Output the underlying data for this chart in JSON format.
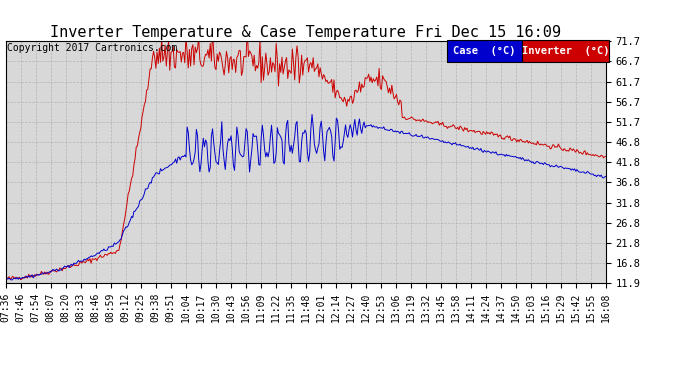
{
  "title": "Inverter Temperature & Case Temperature Fri Dec 15 16:09",
  "copyright": "Copyright 2017 Cartronics.com",
  "legend_case_label": "Case  (°C)",
  "legend_inverter_label": "Inverter  (°C)",
  "case_color": "#0000cc",
  "inverter_color": "#cc0000",
  "legend_case_bg": "#0000cc",
  "legend_inverter_bg": "#cc0000",
  "bg_color": "#ffffff",
  "plot_bg_color": "#d8d8d8",
  "grid_color": "#aaaaaa",
  "yticks": [
    11.9,
    16.8,
    21.8,
    26.8,
    31.8,
    36.8,
    41.8,
    46.8,
    51.7,
    56.7,
    61.7,
    66.7,
    71.7
  ],
  "ymin": 11.9,
  "ymax": 71.7,
  "title_fontsize": 11,
  "copyright_fontsize": 7,
  "tick_fontsize": 7.5,
  "legend_fontsize": 7.5
}
